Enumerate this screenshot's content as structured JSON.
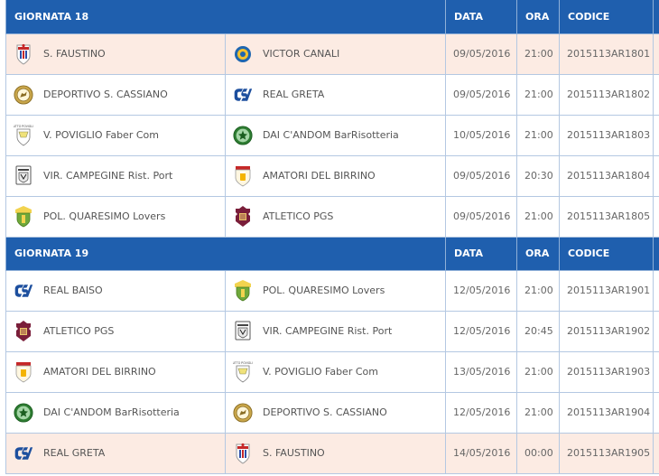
{
  "rounds": [
    {
      "title": "GIORNATA 18",
      "col_date": "DATA",
      "col_time": "ORA",
      "col_code": "CODICE",
      "matches": [
        {
          "home": "S. FAUSTINO",
          "home_icon": "faustino-crest-icon",
          "away": "VICTOR CANALI",
          "away_icon": "victor-canali-crest-icon",
          "date": "09/05/2016",
          "time": "21:00",
          "code": "2015113AR1801",
          "highlight": true
        },
        {
          "home": "DEPORTIVO S. CASSIANO",
          "home_icon": "cassiano-crest-icon",
          "away": "REAL GRETA",
          "away_icon": "csi-logo-icon",
          "date": "09/05/2016",
          "time": "21:00",
          "code": "2015113AR1802",
          "highlight": false
        },
        {
          "home": "V. POVIGLIO Faber Com",
          "home_icon": "poviglio-crest-icon",
          "away": "DAI C'ANDOM BarRisotteria",
          "away_icon": "candom-crest-icon",
          "date": "10/05/2016",
          "time": "21:00",
          "code": "2015113AR1803",
          "highlight": false
        },
        {
          "home": "VIR. CAMPEGINE Rist. Port",
          "home_icon": "campegine-crest-icon",
          "away": "AMATORI DEL BIRRINO",
          "away_icon": "birrino-crest-icon",
          "date": "09/05/2016",
          "time": "20:30",
          "code": "2015113AR1804",
          "highlight": false
        },
        {
          "home": "POL. QUARESIMO Lovers",
          "home_icon": "quaresimo-crest-icon",
          "away": "ATLETICO PGS",
          "away_icon": "pgs-crest-icon",
          "date": "09/05/2016",
          "time": "21:00",
          "code": "2015113AR1805",
          "highlight": false
        }
      ]
    },
    {
      "title": "GIORNATA 19",
      "col_date": "DATA",
      "col_time": "ORA",
      "col_code": "CODICE",
      "matches": [
        {
          "home": "REAL BAISO",
          "home_icon": "csi-logo-icon",
          "away": "POL. QUARESIMO Lovers",
          "away_icon": "quaresimo-crest-icon",
          "date": "12/05/2016",
          "time": "21:00",
          "code": "2015113AR1901",
          "highlight": false
        },
        {
          "home": "ATLETICO PGS",
          "home_icon": "pgs-crest-icon",
          "away": "VIR. CAMPEGINE Rist. Port",
          "away_icon": "campegine-crest-icon",
          "date": "12/05/2016",
          "time": "20:45",
          "code": "2015113AR1902",
          "highlight": false
        },
        {
          "home": "AMATORI DEL BIRRINO",
          "home_icon": "birrino-crest-icon",
          "away": "V. POVIGLIO Faber Com",
          "away_icon": "poviglio-crest-icon",
          "date": "13/05/2016",
          "time": "21:00",
          "code": "2015113AR1903",
          "highlight": false
        },
        {
          "home": "DAI C'ANDOM BarRisotteria",
          "home_icon": "candom-crest-icon",
          "away": "DEPORTIVO S. CASSIANO",
          "away_icon": "cassiano-crest-icon",
          "date": "12/05/2016",
          "time": "21:00",
          "code": "2015113AR1904",
          "highlight": false
        },
        {
          "home": "REAL GRETA",
          "home_icon": "csi-logo-icon",
          "away": "S. FAUSTINO",
          "away_icon": "faustino-crest-icon",
          "date": "14/05/2016",
          "time": "00:00",
          "code": "2015113AR1905",
          "highlight": true
        }
      ]
    }
  ],
  "colors": {
    "header_bg": "#1f5fae",
    "highlight_row": "#fcebe3",
    "border": "#b4c8e2"
  }
}
